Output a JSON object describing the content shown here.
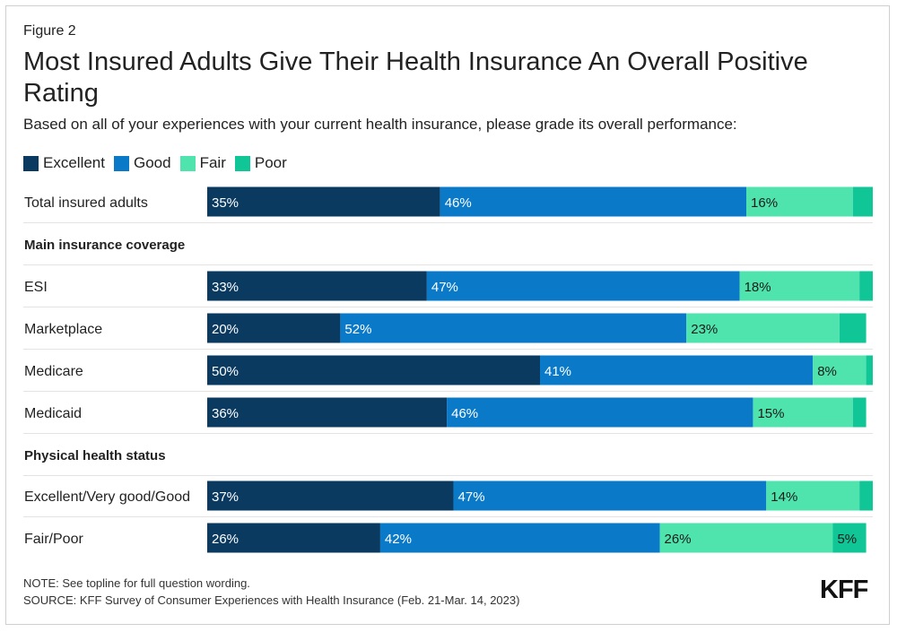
{
  "figure_label": "Figure 2",
  "chart_data": {
    "type": "bar",
    "orientation": "horizontal-stacked",
    "title": "Most Insured Adults Give Their Health Insurance An Overall Positive Rating",
    "subtitle": "Based on all of your experiences with your current health insurance, please grade its overall performance:",
    "xlim": [
      0,
      100
    ],
    "legend": [
      {
        "name": "Excellent",
        "color": "#0b3a61"
      },
      {
        "name": "Good",
        "color": "#0a79c8"
      },
      {
        "name": "Fair",
        "color": "#4fe4ae"
      },
      {
        "name": "Poor",
        "color": "#10c596"
      }
    ],
    "rows": [
      {
        "kind": "bar",
        "label": "Total insured adults",
        "values": [
          35,
          46,
          16,
          3
        ],
        "labels": [
          "35%",
          "46%",
          "16%",
          ""
        ]
      },
      {
        "kind": "header",
        "label": "Main insurance coverage"
      },
      {
        "kind": "bar",
        "label": "ESI",
        "values": [
          33,
          47,
          18,
          2
        ],
        "labels": [
          "33%",
          "47%",
          "18%",
          ""
        ]
      },
      {
        "kind": "bar",
        "label": "Marketplace",
        "values": [
          20,
          52,
          23,
          4
        ],
        "labels": [
          "20%",
          "52%",
          "23%",
          ""
        ]
      },
      {
        "kind": "bar",
        "label": "Medicare",
        "values": [
          50,
          41,
          8,
          1
        ],
        "labels": [
          "50%",
          "41%",
          "8%",
          ""
        ]
      },
      {
        "kind": "bar",
        "label": "Medicaid",
        "values": [
          36,
          46,
          15,
          2
        ],
        "labels": [
          "36%",
          "46%",
          "15%",
          ""
        ]
      },
      {
        "kind": "header",
        "label": "Physical health status"
      },
      {
        "kind": "bar",
        "label": "Excellent/Very good/Good",
        "values": [
          37,
          47,
          14,
          2
        ],
        "labels": [
          "37%",
          "47%",
          "14%",
          ""
        ]
      },
      {
        "kind": "bar",
        "label": "Fair/Poor",
        "values": [
          26,
          42,
          26,
          5
        ],
        "labels": [
          "26%",
          "42%",
          "26%",
          "5%"
        ]
      }
    ]
  },
  "footer": {
    "note": "NOTE: See topline for full question wording.",
    "source": "SOURCE: KFF Survey of Consumer Experiences with Health Insurance (Feb. 21-Mar. 14, 2023)",
    "logo": "KFF"
  }
}
